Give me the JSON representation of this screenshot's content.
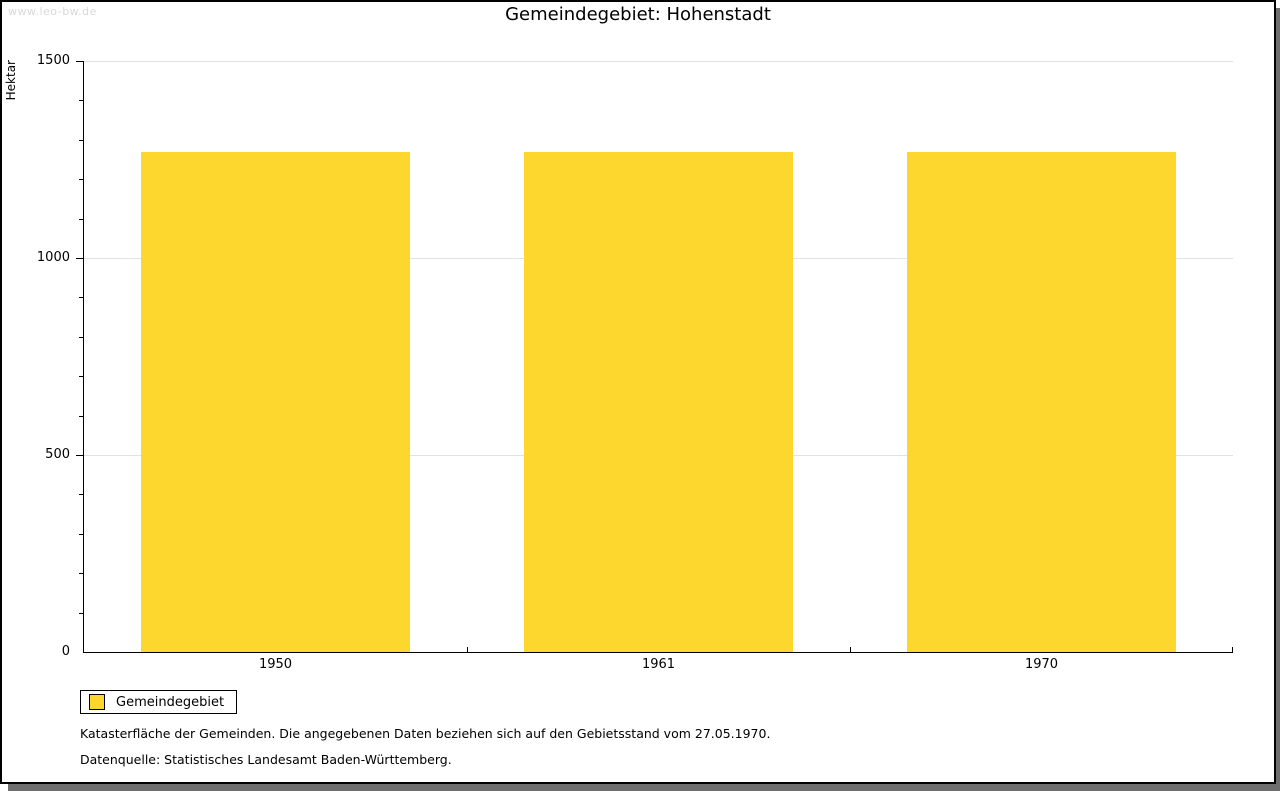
{
  "watermark": "www.leo-bw.de",
  "header": {
    "title": "Gemeindegebiet: Hohenstadt"
  },
  "legend": {
    "label": "Gemeindegebiet"
  },
  "footer": {
    "line1": "Katasterfläche der Gemeinden. Die angegebenen Daten beziehen sich auf den Gebietsstand vom 27.05.1970.",
    "line2": "Datenquelle: Statistisches Landesamt Baden-Württemberg."
  },
  "colors": {
    "bar": "#fdd62e",
    "grid": "#e2e2e2",
    "axis": "#000000",
    "shadow": "#6e6e6e",
    "watermark": "#d9d9d9"
  },
  "chart_data": {
    "type": "bar",
    "title": "Gemeindegebiet: Hohenstadt",
    "xlabel": "",
    "ylabel": "Hektar",
    "categories": [
      "1950",
      "1961",
      "1970"
    ],
    "series": [
      {
        "name": "Gemeindegebiet",
        "values": [
          1270,
          1270,
          1270
        ]
      }
    ],
    "ylim": [
      0,
      1500
    ],
    "yticks_major": [
      0,
      500,
      1000,
      1500
    ],
    "ytick_minor_step": 100,
    "grid": "horizontal-major",
    "legend_position": "bottom-left",
    "bar_color": "#fdd62e",
    "bar_width_fraction": 0.7
  }
}
